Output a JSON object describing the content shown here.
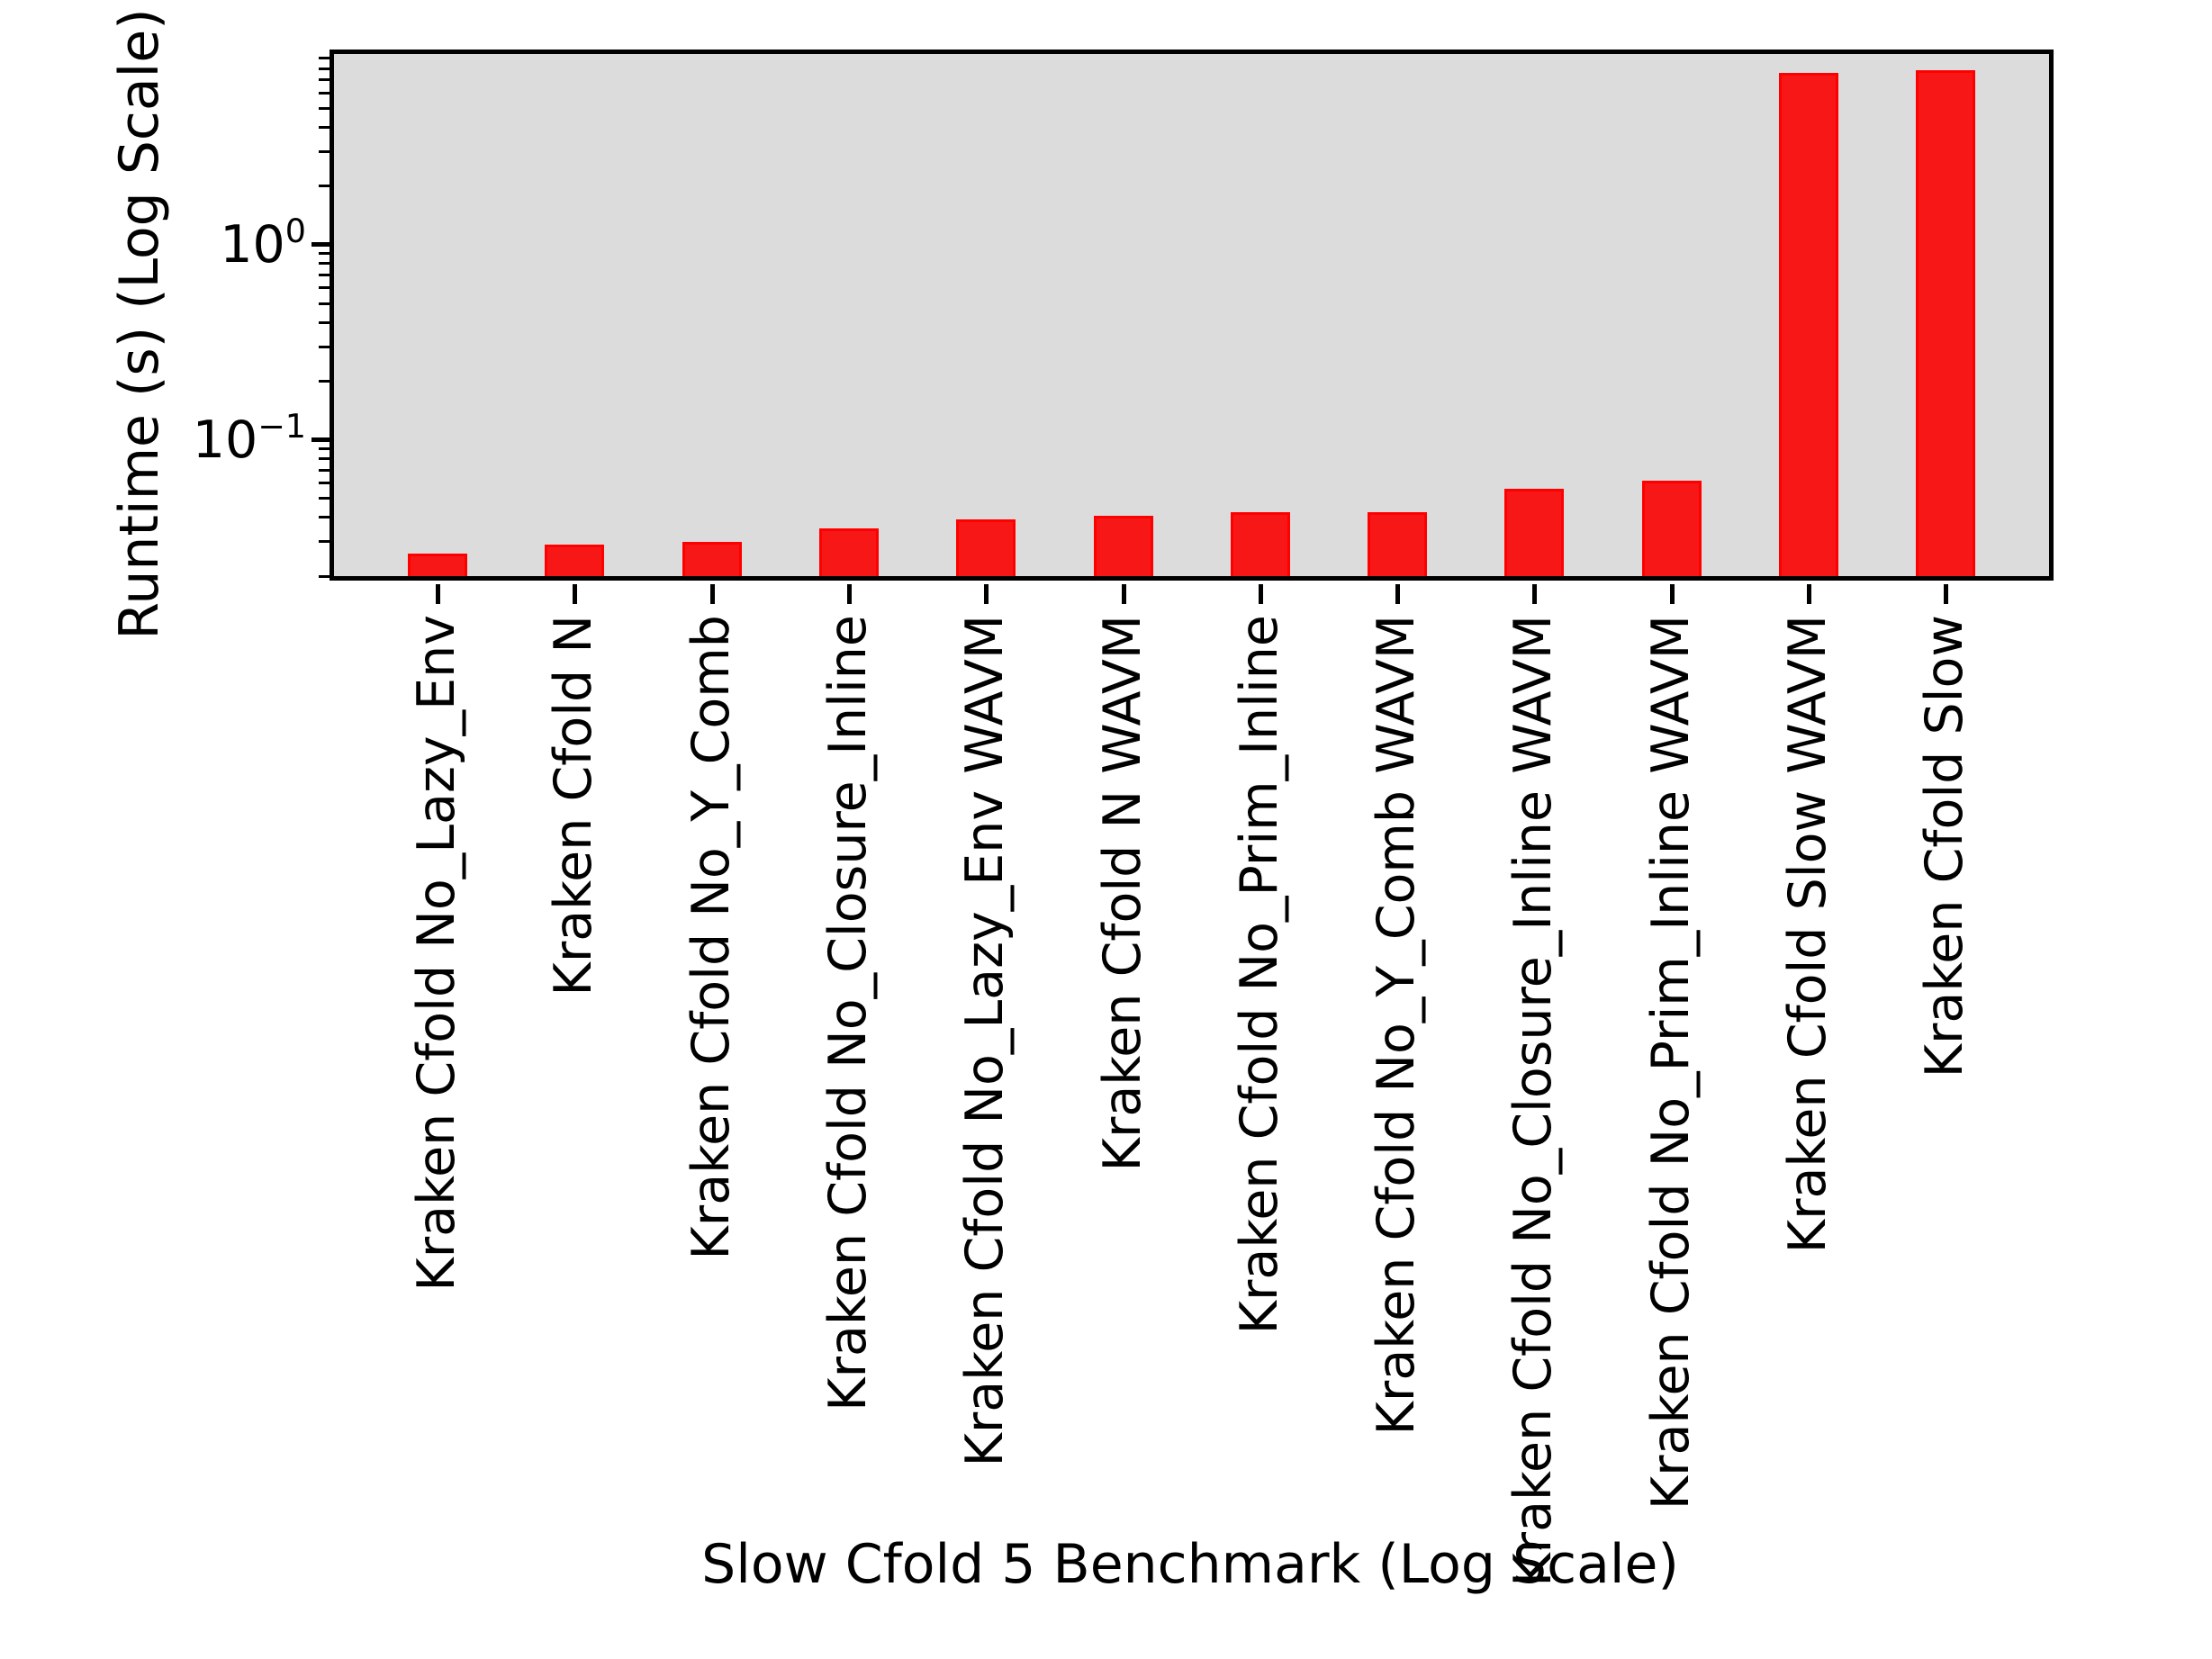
{
  "chart_data": {
    "type": "bar",
    "title": "",
    "xlabel": "Slow Cfold 5 Benchmark (Log Scale)",
    "ylabel": "Runtime (s) (Log Scale)",
    "categories": [
      "Kraken Cfold No_Lazy_Env",
      "Kraken Cfold N",
      "Kraken Cfold No_Y_Comb",
      "Kraken Cfold No_Closure_Inline",
      "Kraken Cfold No_Lazy_Env WAVM",
      "Kraken Cfold N WAVM",
      "Kraken Cfold No_Prim_Inline",
      "Kraken Cfold No_Y_Comb WAVM",
      "Kraken Cfold No_Closure_Inline WAVM",
      "Kraken Cfold No_Prim_Inline WAVM",
      "Kraken Cfold Slow WAVM",
      "Kraken Cfold Slow"
    ],
    "values": [
      0.026,
      0.029,
      0.03,
      0.035,
      0.039,
      0.041,
      0.0425,
      0.0425,
      0.056,
      0.062,
      7.6,
      7.8
    ],
    "yscale": "log",
    "ylim": [
      0.019,
      10
    ],
    "y_major_ticks": [
      {
        "value": 1,
        "base": "10",
        "exp": "0"
      },
      {
        "value": 0.1,
        "base": "10",
        "exp": "−1"
      }
    ],
    "grid": false,
    "legend": {
      "visible": true,
      "position": "upper right",
      "entries": []
    },
    "colors": {
      "bar_fill": "#f81717",
      "bar_edge": "#fe0000",
      "plot_background": "#dcdcdc",
      "spine": "#000000"
    }
  }
}
